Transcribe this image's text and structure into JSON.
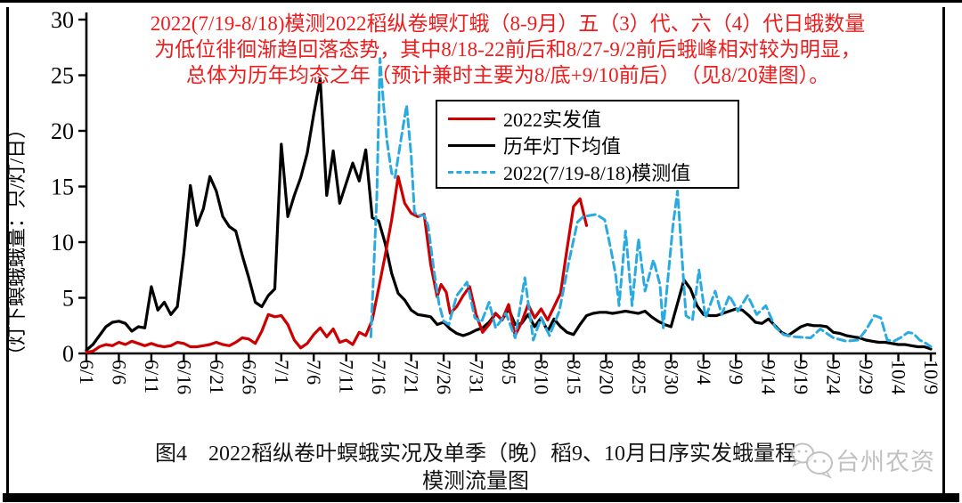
{
  "annotation": {
    "color": "#ee1c1c",
    "lines": [
      "2022(7/19-8/18)模测2022稻纵卷螟灯蛾（8-9月）五（3）代、六（4）代日蛾数量",
      "为低位徘徊渐趋回落态势，其中8/18-22前后和8/27-9/2前后蛾峰相对较为明显，",
      "总体为历年均态之年（预计兼时主要为8/底+9/10前后）　（见8/20建图）。"
    ]
  },
  "legend": {
    "items": [
      {
        "label": "2022实发值",
        "color": "#cc0000",
        "style": "solid"
      },
      {
        "label": "历年灯下均值",
        "color": "#000000",
        "style": "solid"
      },
      {
        "label": "2022(7/19-8/18)模测值",
        "color": "#29abe2",
        "style": "dashed"
      }
    ]
  },
  "caption": {
    "line1": "图4　2022稻纵卷叶螟蛾实况及单季（晚）稻9、10月日序实发蛾量程",
    "line2": "模测流量图"
  },
  "watermark": {
    "text": "台州农资",
    "icon": "wechat-bubbles-icon",
    "color": "#b3b1b1"
  },
  "chart_data": {
    "type": "line",
    "title": "图4 2022稻纵卷叶螟蛾实况及单季（晚）稻9、10月日序实发蛾量程模测流量图",
    "ylabel": "（灯下螟蛾蛾量：只/灯/日）",
    "ylim": [
      0,
      30
    ],
    "yticks": [
      0,
      5,
      10,
      15,
      20,
      25,
      30
    ],
    "grid": false,
    "legend_position": "upper-middle",
    "x_axis": {
      "unit": "date",
      "day_index_origin": "6/1",
      "total_days": 130,
      "tick_interval_days": 5,
      "tick_labels": [
        "6/1",
        "6/6",
        "6/11",
        "6/16",
        "6/21",
        "6/26",
        "7/1",
        "7/6",
        "7/11",
        "7/16",
        "7/21",
        "7/26",
        "7/31",
        "8/5",
        "8/10",
        "8/15",
        "8/20",
        "8/25",
        "8/30",
        "9/4",
        "9/9",
        "9/14",
        "9/19",
        "9/24",
        "9/29",
        "10/4",
        "10/9"
      ]
    },
    "series": [
      {
        "name": "历年灯下均值",
        "color": "#000000",
        "style": "solid",
        "points": [
          [
            0,
            0.3
          ],
          [
            1,
            0.8
          ],
          [
            2,
            1.6
          ],
          [
            3,
            2.4
          ],
          [
            4,
            2.8
          ],
          [
            5,
            2.9
          ],
          [
            6,
            2.7
          ],
          [
            7,
            2.0
          ],
          [
            8,
            2.4
          ],
          [
            9,
            2.3
          ],
          [
            10,
            6.0
          ],
          [
            11,
            3.9
          ],
          [
            12,
            4.6
          ],
          [
            13,
            3.5
          ],
          [
            14,
            4.2
          ],
          [
            15,
            9.0
          ],
          [
            16,
            15.1
          ],
          [
            17,
            11.5
          ],
          [
            18,
            13.0
          ],
          [
            19,
            15.9
          ],
          [
            20,
            14.6
          ],
          [
            21,
            12.3
          ],
          [
            22,
            11.4
          ],
          [
            23,
            11.0
          ],
          [
            24,
            8.8
          ],
          [
            25,
            6.8
          ],
          [
            26,
            4.6
          ],
          [
            27,
            4.2
          ],
          [
            28,
            5.2
          ],
          [
            29,
            5.8
          ],
          [
            30,
            18.8
          ],
          [
            31,
            12.3
          ],
          [
            32,
            14.2
          ],
          [
            33,
            15.8
          ],
          [
            34,
            18.0
          ],
          [
            35,
            21.5
          ],
          [
            36,
            24.7
          ],
          [
            37,
            14.2
          ],
          [
            38,
            18.2
          ],
          [
            39,
            13.5
          ],
          [
            40,
            15.3
          ],
          [
            41,
            17.1
          ],
          [
            42,
            15.5
          ],
          [
            43,
            18.3
          ],
          [
            44,
            12.2
          ],
          [
            45,
            11.9
          ],
          [
            46,
            9.9
          ],
          [
            47,
            7.2
          ],
          [
            48,
            5.4
          ],
          [
            49,
            4.8
          ],
          [
            50,
            3.9
          ],
          [
            51,
            3.5
          ],
          [
            52,
            3.4
          ],
          [
            53,
            3.3
          ],
          [
            54,
            2.6
          ],
          [
            55,
            2.8
          ],
          [
            56,
            2.2
          ],
          [
            57,
            1.8
          ],
          [
            58,
            1.6
          ],
          [
            59,
            1.8
          ],
          [
            60,
            2.1
          ],
          [
            61,
            2.3
          ],
          [
            62,
            2.8
          ],
          [
            63,
            3.6
          ],
          [
            64,
            3.0
          ],
          [
            65,
            4.0
          ],
          [
            66,
            2.6
          ],
          [
            67,
            2.7
          ],
          [
            68,
            3.5
          ],
          [
            69,
            2.4
          ],
          [
            70,
            3.2
          ],
          [
            71,
            2.0
          ],
          [
            72,
            3.1
          ],
          [
            73,
            2.4
          ],
          [
            74,
            1.9
          ],
          [
            75,
            1.7
          ],
          [
            76,
            2.6
          ],
          [
            77,
            3.4
          ],
          [
            78,
            3.6
          ],
          [
            79,
            3.7
          ],
          [
            80,
            3.7
          ],
          [
            81,
            3.6
          ],
          [
            82,
            3.7
          ],
          [
            83,
            3.8
          ],
          [
            84,
            3.7
          ],
          [
            85,
            3.6
          ],
          [
            86,
            3.8
          ],
          [
            87,
            3.3
          ],
          [
            88,
            2.9
          ],
          [
            89,
            2.6
          ],
          [
            90,
            2.4
          ],
          [
            91,
            4.5
          ],
          [
            92,
            6.6
          ],
          [
            93,
            5.8
          ],
          [
            94,
            4.3
          ],
          [
            95,
            3.5
          ],
          [
            96,
            3.4
          ],
          [
            97,
            3.4
          ],
          [
            98,
            3.6
          ],
          [
            99,
            3.8
          ],
          [
            100,
            4.0
          ],
          [
            101,
            3.9
          ],
          [
            102,
            3.4
          ],
          [
            103,
            2.8
          ],
          [
            104,
            2.7
          ],
          [
            105,
            3.1
          ],
          [
            106,
            2.5
          ],
          [
            107,
            1.9
          ],
          [
            108,
            1.6
          ],
          [
            109,
            2.0
          ],
          [
            110,
            2.4
          ],
          [
            111,
            2.6
          ],
          [
            112,
            2.5
          ],
          [
            113,
            2.5
          ],
          [
            114,
            2.4
          ],
          [
            115,
            1.9
          ],
          [
            116,
            1.8
          ],
          [
            117,
            1.6
          ],
          [
            118,
            1.5
          ],
          [
            119,
            1.4
          ],
          [
            120,
            1.2
          ],
          [
            121,
            1.1
          ],
          [
            122,
            1.0
          ],
          [
            123,
            1.0
          ],
          [
            124,
            0.9
          ],
          [
            125,
            0.8
          ],
          [
            126,
            0.8
          ],
          [
            127,
            0.7
          ],
          [
            128,
            0.6
          ],
          [
            129,
            0.6
          ],
          [
            130,
            0.4
          ]
        ]
      },
      {
        "name": "2022实发值",
        "color": "#cc0000",
        "style": "solid",
        "points": [
          [
            0,
            0.1
          ],
          [
            1,
            0.2
          ],
          [
            2,
            0.6
          ],
          [
            3,
            0.8
          ],
          [
            4,
            0.7
          ],
          [
            5,
            1.0
          ],
          [
            6,
            0.8
          ],
          [
            7,
            1.1
          ],
          [
            8,
            0.9
          ],
          [
            9,
            0.7
          ],
          [
            10,
            0.9
          ],
          [
            11,
            0.7
          ],
          [
            12,
            0.6
          ],
          [
            13,
            0.7
          ],
          [
            14,
            1.0
          ],
          [
            15,
            0.9
          ],
          [
            16,
            0.6
          ],
          [
            17,
            0.6
          ],
          [
            18,
            0.7
          ],
          [
            19,
            0.8
          ],
          [
            20,
            1.0
          ],
          [
            21,
            0.8
          ],
          [
            22,
            0.7
          ],
          [
            23,
            1.0
          ],
          [
            24,
            1.4
          ],
          [
            25,
            1.3
          ],
          [
            26,
            0.9
          ],
          [
            27,
            2.0
          ],
          [
            28,
            3.5
          ],
          [
            29,
            3.3
          ],
          [
            30,
            3.4
          ],
          [
            31,
            2.6
          ],
          [
            32,
            1.2
          ],
          [
            33,
            0.5
          ],
          [
            34,
            0.9
          ],
          [
            35,
            1.7
          ],
          [
            36,
            2.3
          ],
          [
            37,
            1.5
          ],
          [
            38,
            2.2
          ],
          [
            39,
            1.0
          ],
          [
            40,
            1.2
          ],
          [
            41,
            0.8
          ],
          [
            42,
            1.9
          ],
          [
            43,
            1.6
          ],
          [
            44,
            3.0
          ],
          [
            45,
            5.9
          ],
          [
            46,
            8.8
          ],
          [
            47,
            12.0
          ],
          [
            48,
            15.9
          ],
          [
            49,
            13.5
          ],
          [
            50,
            12.6
          ],
          [
            51,
            12.3
          ],
          [
            52,
            12.5
          ],
          [
            53,
            8.0
          ],
          [
            54,
            5.1
          ],
          [
            54.6,
            6.2
          ],
          [
            55.4,
            5.5
          ],
          [
            56,
            3.6
          ],
          [
            57,
            4.2
          ],
          [
            58,
            5.2
          ],
          [
            59,
            6.0
          ],
          [
            60,
            3.5
          ],
          [
            61,
            1.9
          ],
          [
            62,
            2.6
          ],
          [
            63,
            3.6
          ],
          [
            64,
            3.0
          ],
          [
            65,
            4.4
          ],
          [
            66,
            1.6
          ],
          [
            67,
            2.8
          ],
          [
            68,
            4.4
          ],
          [
            69,
            3.2
          ],
          [
            70,
            4.0
          ],
          [
            71,
            3.0
          ],
          [
            72,
            4.2
          ],
          [
            73,
            5.4
          ],
          [
            74,
            9.4
          ],
          [
            75,
            13.2
          ],
          [
            76,
            13.9
          ],
          [
            77,
            11.5
          ]
        ]
      },
      {
        "name": "2022(7/19-8/18)模测值",
        "color": "#29abe2",
        "style": "dashed",
        "points": [
          [
            43.8,
            1.5
          ],
          [
            44.7,
            14
          ],
          [
            45.2,
            26.5
          ],
          [
            45.8,
            22
          ],
          [
            46.3,
            19
          ],
          [
            47,
            16.2
          ],
          [
            47.5,
            15.8
          ],
          [
            48.5,
            19.5
          ],
          [
            49.3,
            22.3
          ],
          [
            50,
            17.8
          ],
          [
            50.5,
            12.7
          ],
          [
            51,
            12.4
          ],
          [
            52,
            12.4
          ],
          [
            52.6,
            11.5
          ],
          [
            53.5,
            7.5
          ],
          [
            54.3,
            4.4
          ],
          [
            55,
            2.9
          ],
          [
            55.8,
            2.6
          ],
          [
            57,
            5.2
          ],
          [
            58.6,
            6.4
          ],
          [
            59.8,
            3.2
          ],
          [
            60.8,
            2.8
          ],
          [
            62,
            4.6
          ],
          [
            63,
            2.3
          ],
          [
            64.6,
            3.6
          ],
          [
            66,
            1.4
          ],
          [
            67.5,
            6.8
          ],
          [
            68.8,
            1.2
          ],
          [
            70,
            3.2
          ],
          [
            71.3,
            1.6
          ],
          [
            72.8,
            3.8
          ],
          [
            74.3,
            8.3
          ],
          [
            75.6,
            11.8
          ],
          [
            76.5,
            12.3
          ],
          [
            78.5,
            12.5
          ],
          [
            79.8,
            12.0
          ],
          [
            80.8,
            9.2
          ],
          [
            81.5,
            7.0
          ],
          [
            82,
            4.3
          ],
          [
            83,
            11.0
          ],
          [
            84,
            4.3
          ],
          [
            85,
            10.3
          ],
          [
            86,
            5.6
          ],
          [
            87.3,
            8.4
          ],
          [
            88.3,
            6.2
          ],
          [
            88.8,
            2.3
          ],
          [
            90.3,
            11.5
          ],
          [
            91,
            14.6
          ],
          [
            92.3,
            3.4
          ],
          [
            93.3,
            3.0
          ],
          [
            94.3,
            7.5
          ],
          [
            95.3,
            3.2
          ],
          [
            96.8,
            5.6
          ],
          [
            97.8,
            3.5
          ],
          [
            99,
            5.2
          ],
          [
            100.3,
            3.8
          ],
          [
            101.8,
            5.2
          ],
          [
            103.2,
            3.5
          ],
          [
            104.6,
            4.3
          ],
          [
            106,
            2.4
          ],
          [
            107.3,
            1.7
          ],
          [
            109,
            1.5
          ],
          [
            111.5,
            1.4
          ],
          [
            113,
            2.2
          ],
          [
            115,
            1.4
          ],
          [
            117,
            1.1
          ],
          [
            118.8,
            1.2
          ],
          [
            120,
            2.1
          ],
          [
            121.3,
            3.4
          ],
          [
            122.3,
            3.2
          ],
          [
            123.3,
            1.2
          ],
          [
            124.3,
            1.1
          ],
          [
            125.3,
            1.4
          ],
          [
            126.5,
            1.9
          ],
          [
            127.3,
            1.8
          ],
          [
            128.3,
            1.2
          ],
          [
            129.3,
            0.9
          ],
          [
            130,
            0.6
          ]
        ]
      }
    ]
  }
}
